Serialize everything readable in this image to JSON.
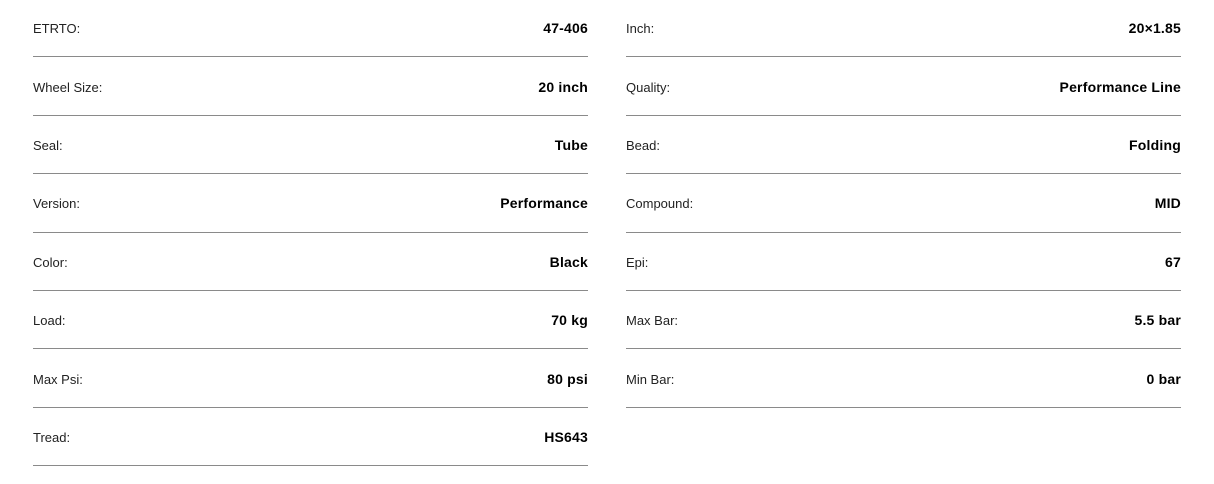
{
  "specs_left": [
    {
      "label": "ETRTO:",
      "value": "47-406"
    },
    {
      "label": "Wheel Size:",
      "value": "20 inch"
    },
    {
      "label": "Seal:",
      "value": "Tube"
    },
    {
      "label": "Version:",
      "value": "Performance"
    },
    {
      "label": "Color:",
      "value": "Black"
    },
    {
      "label": "Load:",
      "value": "70 kg"
    },
    {
      "label": "Max Psi:",
      "value": "80 psi"
    },
    {
      "label": "Tread:",
      "value": "HS643"
    }
  ],
  "specs_right": [
    {
      "label": "Inch:",
      "value": "20×1.85"
    },
    {
      "label": "Quality:",
      "value": "Performance Line"
    },
    {
      "label": "Bead:",
      "value": "Folding"
    },
    {
      "label": "Compound:",
      "value": "MID"
    },
    {
      "label": "Epi:",
      "value": "67"
    },
    {
      "label": "Max Bar:",
      "value": "5.5 bar"
    },
    {
      "label": "Min Bar:",
      "value": "0 bar"
    }
  ]
}
